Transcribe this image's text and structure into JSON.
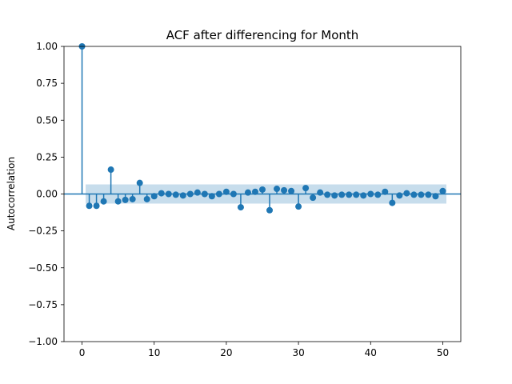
{
  "chart_data": {
    "type": "scatter",
    "subtype": "acf-stem",
    "title": "ACF after differencing for Month",
    "xlabel": "",
    "ylabel": "Autocorrelation",
    "xlim": [
      -2.5,
      52.5
    ],
    "ylim": [
      -1.0,
      1.0
    ],
    "xticks": [
      0,
      10,
      20,
      30,
      40,
      50
    ],
    "yticks": [
      -1.0,
      -0.75,
      -0.5,
      -0.25,
      0.0,
      0.25,
      0.5,
      0.75,
      1.0
    ],
    "xtick_labels": [
      "0",
      "10",
      "20",
      "30",
      "40",
      "50"
    ],
    "ytick_labels": [
      "−1.00",
      "−0.75",
      "−0.50",
      "−0.25",
      "0.00",
      "0.25",
      "0.50",
      "0.75",
      "1.00"
    ],
    "grid": false,
    "colors": {
      "series": "#1f77b4",
      "band": "#1f77b4",
      "band_alpha": 0.25
    },
    "confidence_band": {
      "x": [
        0.5,
        50.5
      ],
      "lower": -0.065,
      "upper": 0.065
    },
    "series": [
      {
        "x": [
          0,
          1,
          2,
          3,
          4,
          5,
          6,
          7,
          8,
          9,
          10,
          11,
          12,
          13,
          14,
          15,
          16,
          17,
          18,
          19,
          20,
          21,
          22,
          23,
          24,
          25,
          26,
          27,
          28,
          29,
          30,
          31,
          32,
          33,
          34,
          35,
          36,
          37,
          38,
          39,
          40,
          41,
          42,
          43,
          44,
          45,
          46,
          47,
          48,
          49,
          50
        ],
        "values": [
          1.0,
          -0.08,
          -0.08,
          -0.05,
          0.165,
          -0.05,
          -0.04,
          -0.035,
          0.075,
          -0.035,
          -0.015,
          0.005,
          0.0,
          -0.005,
          -0.01,
          0.0,
          0.01,
          0.0,
          -0.015,
          0.0,
          0.015,
          0.0,
          -0.09,
          0.01,
          0.015,
          0.03,
          -0.11,
          0.035,
          0.025,
          0.02,
          -0.085,
          0.04,
          -0.025,
          0.01,
          -0.005,
          -0.01,
          -0.005,
          -0.005,
          -0.005,
          -0.01,
          0.0,
          -0.005,
          0.015,
          -0.06,
          -0.01,
          0.005,
          -0.005,
          -0.005,
          -0.005,
          -0.015,
          0.02
        ]
      }
    ]
  }
}
